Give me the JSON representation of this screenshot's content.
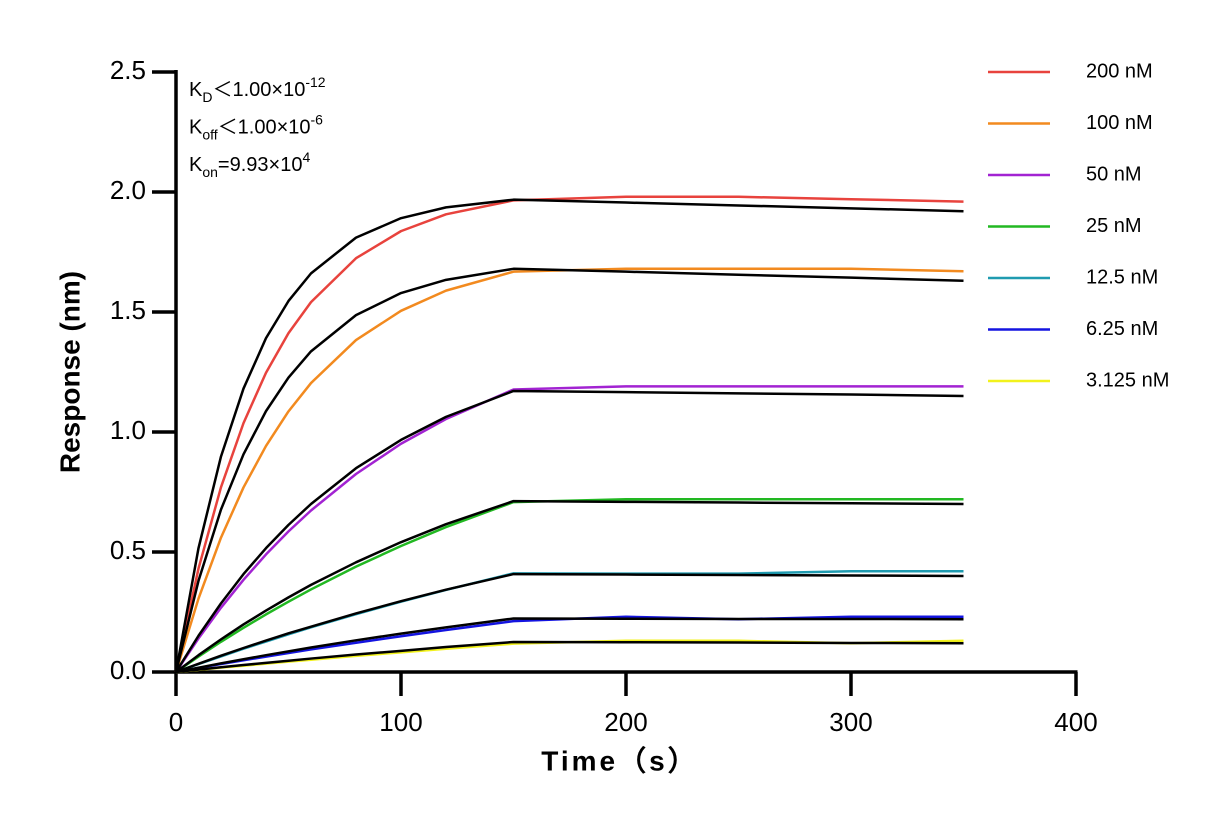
{
  "chart_data": {
    "type": "line",
    "x_label": "Time（s）",
    "y_label": "Response (nm)",
    "xlim": [
      0,
      400
    ],
    "xticks": [
      0,
      100,
      200,
      300,
      400
    ],
    "ylim": [
      0,
      2.5
    ],
    "yticks": [
      {
        "value": 0,
        "label": "0.0"
      },
      0.5,
      {
        "value": 1,
        "label": "1.0"
      },
      1.5,
      {
        "value": 2,
        "label": "2.0"
      },
      2.5
    ],
    "grid": false,
    "legend_position": "right",
    "annotations": [
      {
        "symbol": "K",
        "subscript": "D",
        "text": "＜1.00×10",
        "superscript": "-12"
      },
      {
        "symbol": "K",
        "subscript": "off",
        "text": "＜1.00×10",
        "superscript": "-6"
      },
      {
        "symbol": "K",
        "subscript": "on",
        "text": "=9.93×10",
        "superscript": "4"
      }
    ],
    "x": [
      0,
      10,
      20,
      30,
      40,
      50,
      60,
      80,
      100,
      120,
      150,
      200,
      250,
      300,
      350
    ],
    "series": [
      {
        "name": "200 nM",
        "color": "#e8433d",
        "values": [
          0,
          0.431,
          0.77,
          1.037,
          1.247,
          1.412,
          1.541,
          1.724,
          1.837,
          1.907,
          1.965,
          1.98,
          1.98,
          1.97,
          1.96
        ]
      },
      {
        "name": "100 nM",
        "color": "#f28a1f",
        "values": [
          0,
          0.306,
          0.56,
          0.769,
          0.942,
          1.086,
          1.204,
          1.383,
          1.505,
          1.589,
          1.668,
          1.68,
          1.68,
          1.68,
          1.67
        ]
      },
      {
        "name": "50 nM",
        "color": "#a223d2",
        "values": [
          0,
          0.14,
          0.268,
          0.384,
          0.49,
          0.586,
          0.673,
          0.825,
          0.951,
          1.054,
          1.177,
          1.19,
          1.19,
          1.19,
          1.19
        ]
      },
      {
        "name": "25 nM",
        "color": "#22b822",
        "values": [
          0,
          0.064,
          0.126,
          0.184,
          0.24,
          0.293,
          0.344,
          0.439,
          0.525,
          0.604,
          0.708,
          0.72,
          0.72,
          0.72,
          0.72
        ]
      },
      {
        "name": "12.5 nM",
        "color": "#1f9bb0",
        "values": [
          0,
          0.033,
          0.065,
          0.097,
          0.127,
          0.157,
          0.186,
          0.241,
          0.293,
          0.342,
          0.411,
          0.41,
          0.41,
          0.42,
          0.42
        ]
      },
      {
        "name": "6.25 nM",
        "color": "#1414e0",
        "values": [
          0,
          0.017,
          0.033,
          0.049,
          0.064,
          0.079,
          0.094,
          0.122,
          0.149,
          0.175,
          0.212,
          0.23,
          0.22,
          0.23,
          0.23
        ]
      },
      {
        "name": "3.125 nM",
        "color": "#f2f21c",
        "values": [
          0,
          0.009,
          0.018,
          0.026,
          0.035,
          0.043,
          0.051,
          0.067,
          0.082,
          0.097,
          0.118,
          0.13,
          0.13,
          0.12,
          0.13
        ]
      }
    ],
    "fits": [
      {
        "color": "#000000",
        "values": [
          0,
          0.516,
          0.898,
          1.181,
          1.391,
          1.546,
          1.661,
          1.81,
          1.891,
          1.936,
          1.968,
          1.956,
          1.944,
          1.932,
          1.92
        ]
      },
      {
        "color": "#000000",
        "values": [
          0,
          0.38,
          0.677,
          0.907,
          1.087,
          1.227,
          1.336,
          1.487,
          1.579,
          1.634,
          1.68,
          1.668,
          1.655,
          1.643,
          1.63
        ]
      },
      {
        "color": "#000000",
        "values": [
          0,
          0.151,
          0.286,
          0.408,
          0.516,
          0.613,
          0.7,
          0.849,
          0.967,
          1.063,
          1.171,
          1.166,
          1.161,
          1.156,
          1.15
        ]
      },
      {
        "color": "#000000",
        "values": [
          0,
          0.07,
          0.136,
          0.198,
          0.256,
          0.311,
          0.363,
          0.457,
          0.541,
          0.616,
          0.712,
          0.709,
          0.706,
          0.703,
          0.7
        ]
      },
      {
        "color": "#000000",
        "values": [
          0,
          0.034,
          0.068,
          0.1,
          0.131,
          0.161,
          0.189,
          0.244,
          0.295,
          0.343,
          0.408,
          0.406,
          0.404,
          0.402,
          0.4
        ]
      },
      {
        "color": "#000000",
        "values": [
          0,
          0.018,
          0.036,
          0.053,
          0.07,
          0.086,
          0.102,
          0.132,
          0.16,
          0.186,
          0.223,
          0.222,
          0.221,
          0.221,
          0.22
        ]
      },
      {
        "color": "#000000",
        "values": [
          0,
          0.01,
          0.02,
          0.029,
          0.038,
          0.047,
          0.056,
          0.073,
          0.088,
          0.104,
          0.125,
          0.124,
          0.123,
          0.121,
          0.12
        ]
      }
    ]
  }
}
